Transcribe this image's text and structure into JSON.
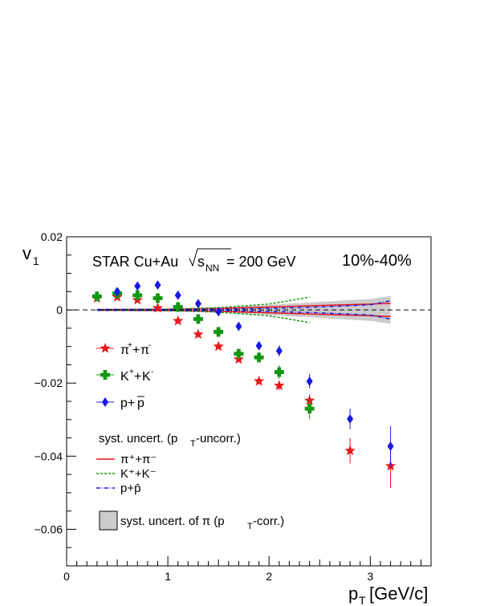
{
  "chart_data": {
    "type": "scatter",
    "title": "STAR Cu+Au",
    "energy_label": "= 200 GeV",
    "sqrt_label": "s",
    "sqrt_sub": "NN",
    "centrality": "10%-40%",
    "xlabel": "p",
    "xlabel_sub": "T",
    "xlabel_unit": "[GeV/c]",
    "ylabel": "v",
    "ylabel_sub": "1",
    "xlim": [
      0,
      3.6
    ],
    "ylim": [
      -0.07,
      0.02
    ],
    "xticks": [
      0,
      1,
      2,
      3
    ],
    "yticks": [
      0.02,
      0,
      -0.02,
      -0.04,
      -0.06
    ],
    "xtick_labels": [
      "0",
      "1",
      "2",
      "3"
    ],
    "ytick_labels": [
      "0.02",
      "0",
      "−0.02",
      "−0.04",
      "−0.06"
    ],
    "series": [
      {
        "name": "π⁺+π⁻",
        "marker": "star",
        "color": "#e8171b",
        "points": [
          {
            "x": 0.3,
            "y": 0.0032,
            "err": 0.0003
          },
          {
            "x": 0.5,
            "y": 0.0035,
            "err": 0.0003
          },
          {
            "x": 0.7,
            "y": 0.0027,
            "err": 0.0003
          },
          {
            "x": 0.9,
            "y": 0.0005,
            "err": 0.0003
          },
          {
            "x": 1.1,
            "y": -0.003,
            "err": 0.0003
          },
          {
            "x": 1.3,
            "y": -0.0067,
            "err": 0.0004
          },
          {
            "x": 1.5,
            "y": -0.01,
            "err": 0.0005
          },
          {
            "x": 1.7,
            "y": -0.0135,
            "err": 0.0006
          },
          {
            "x": 1.9,
            "y": -0.0195,
            "err": 0.0008
          },
          {
            "x": 2.1,
            "y": -0.0207,
            "err": 0.0012
          },
          {
            "x": 2.4,
            "y": -0.0248,
            "err": 0.0018
          },
          {
            "x": 2.8,
            "y": -0.0385,
            "err": 0.0035
          },
          {
            "x": 3.2,
            "y": -0.0427,
            "err": 0.006
          }
        ]
      },
      {
        "name": "K⁺+K⁻",
        "marker": "cross",
        "color": "#109610",
        "points": [
          {
            "x": 0.3,
            "y": 0.0037,
            "err": 0.0005
          },
          {
            "x": 0.5,
            "y": 0.0045,
            "err": 0.0005
          },
          {
            "x": 0.7,
            "y": 0.004,
            "err": 0.0005
          },
          {
            "x": 0.9,
            "y": 0.0032,
            "err": 0.0005
          },
          {
            "x": 1.1,
            "y": 0.0008,
            "err": 0.0006
          },
          {
            "x": 1.3,
            "y": -0.0025,
            "err": 0.0007
          },
          {
            "x": 1.5,
            "y": -0.006,
            "err": 0.0008
          },
          {
            "x": 1.7,
            "y": -0.012,
            "err": 0.0011
          },
          {
            "x": 1.9,
            "y": -0.013,
            "err": 0.0014
          },
          {
            "x": 2.1,
            "y": -0.017,
            "err": 0.0019
          },
          {
            "x": 2.4,
            "y": -0.027,
            "err": 0.0028
          }
        ]
      },
      {
        "name": "p+p̄",
        "marker": "diamond",
        "color": "#1a1ae6",
        "points": [
          {
            "x": 0.5,
            "y": 0.005,
            "err": 0.0006
          },
          {
            "x": 0.7,
            "y": 0.0065,
            "err": 0.0006
          },
          {
            "x": 0.9,
            "y": 0.0068,
            "err": 0.0006
          },
          {
            "x": 1.1,
            "y": 0.004,
            "err": 0.0007
          },
          {
            "x": 1.3,
            "y": 0.0017,
            "err": 0.0007
          },
          {
            "x": 1.5,
            "y": -0.0005,
            "err": 0.0008
          },
          {
            "x": 1.7,
            "y": -0.0045,
            "err": 0.0009
          },
          {
            "x": 1.9,
            "y": -0.0098,
            "err": 0.0011
          },
          {
            "x": 2.1,
            "y": -0.0112,
            "err": 0.0015
          },
          {
            "x": 2.4,
            "y": -0.0195,
            "err": 0.002
          },
          {
            "x": 2.8,
            "y": -0.0298,
            "err": 0.0028
          },
          {
            "x": 3.2,
            "y": -0.0373,
            "err": 0.0055
          }
        ]
      }
    ],
    "syst_bands": [
      {
        "name": "π⁺+π⁻",
        "color": "#e8171b",
        "style": "solid",
        "x": [
          0.3,
          1.0,
          1.5,
          2.0,
          2.5,
          3.0,
          3.2
        ],
        "half": [
          0.0001,
          0.0002,
          0.0004,
          0.0008,
          0.0012,
          0.0016,
          0.0018
        ]
      },
      {
        "name": "K⁺+K⁻",
        "color": "#109610",
        "style": "dashed",
        "x": [
          0.3,
          1.0,
          1.5,
          2.0,
          2.2,
          2.4
        ],
        "half": [
          0.0001,
          0.0002,
          0.0006,
          0.0016,
          0.0025,
          0.0035
        ]
      },
      {
        "name": "p+p̄",
        "color": "#1a1ae6",
        "style": "dashdot",
        "x": [
          0.3,
          1.0,
          1.5,
          2.0,
          2.5,
          3.0,
          3.2
        ],
        "half": [
          0.0001,
          0.0001,
          0.0002,
          0.0004,
          0.0008,
          0.0014,
          0.0025
        ]
      }
    ],
    "corr_band": {
      "color": "#cccccc",
      "x": [
        0.3,
        1.0,
        1.5,
        2.0,
        2.5,
        3.0,
        3.2
      ],
      "half": [
        0.0001,
        0.0002,
        0.0006,
        0.0014,
        0.0022,
        0.003,
        0.0038
      ]
    },
    "legend": {
      "pion": "π",
      "pion_plus": "+",
      "pion_minus": "-",
      "plus": "+",
      "kaon": "K",
      "kaon_plus": "+",
      "kaon_minus": "-",
      "proton": "p+",
      "antiproton": "p",
      "syst_title": "syst. uncert. (p",
      "syst_title_sub": "T",
      "syst_title_end": "-uncorr.)",
      "syst_pion": "π⁺+π⁻",
      "syst_kaon": "K⁺+K⁻",
      "syst_proton": "p+p̄",
      "corr_label": "syst. uncert. of π (p",
      "corr_label_sub": "T",
      "corr_label_end": "-corr.)"
    }
  }
}
